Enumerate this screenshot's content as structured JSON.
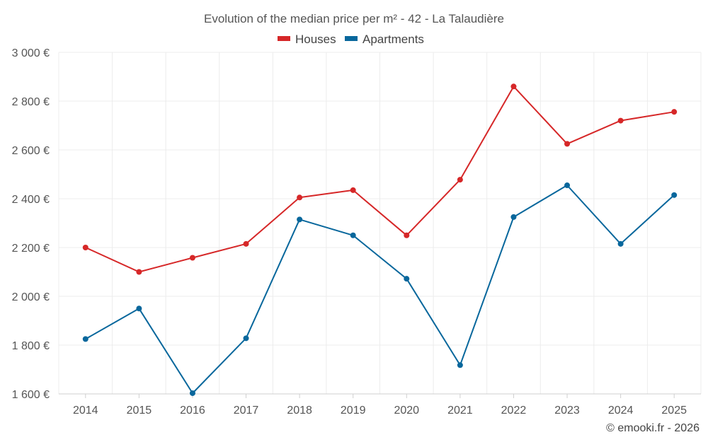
{
  "chart_data": {
    "type": "line",
    "title": "Evolution of the median price per m² - 42 - La Talaudière",
    "xlabel": "",
    "ylabel": "",
    "categories": [
      "2014",
      "2015",
      "2016",
      "2017",
      "2018",
      "2019",
      "2020",
      "2021",
      "2022",
      "2023",
      "2024",
      "2025"
    ],
    "ylim": [
      1600,
      3000
    ],
    "yticks": [
      1600,
      1800,
      2000,
      2200,
      2400,
      2600,
      2800,
      3000
    ],
    "ytick_labels": [
      "1 600 €",
      "1 800 €",
      "2 000 €",
      "2 200 €",
      "2 400 €",
      "2 600 €",
      "2 800 €",
      "3 000 €"
    ],
    "grid": true,
    "legend_position": "top-center",
    "series": [
      {
        "name": "Houses",
        "color": "#d62728",
        "values": [
          2200,
          2100,
          2158,
          2215,
          2405,
          2435,
          2250,
          2478,
          2860,
          2625,
          2720,
          2756
        ]
      },
      {
        "name": "Apartments",
        "color": "#08679c",
        "values": [
          1825,
          1950,
          1603,
          1828,
          2315,
          2250,
          2072,
          1718,
          2325,
          2455,
          2215,
          2415
        ]
      }
    ],
    "credit": "© emooki.fr - 2026"
  }
}
